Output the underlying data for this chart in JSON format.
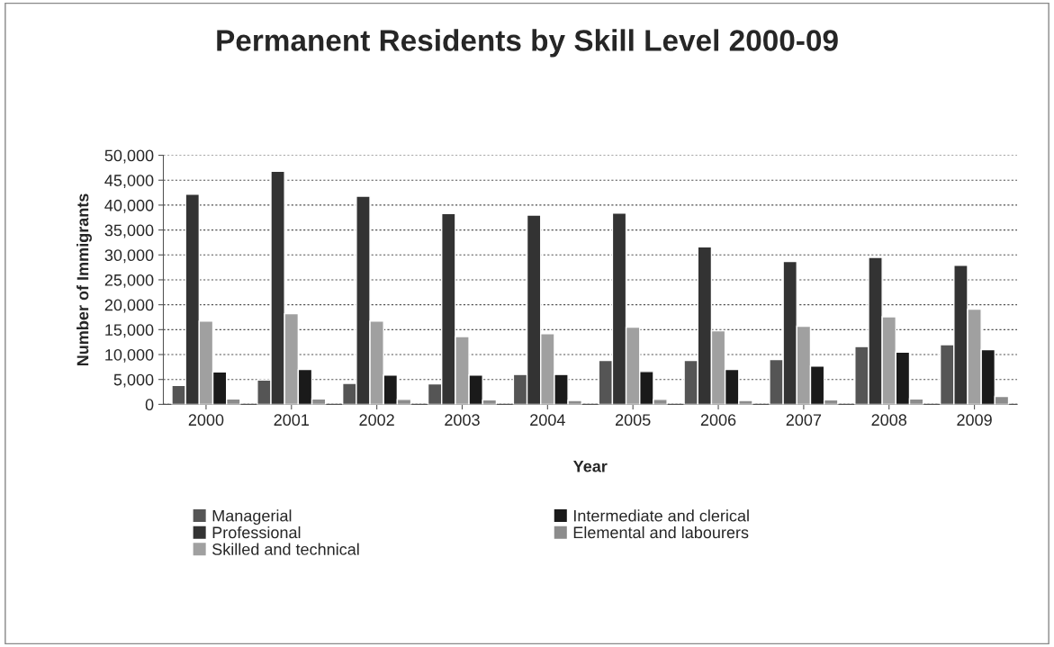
{
  "chart_data": {
    "type": "bar",
    "title": "Permanent Residents by Skill Level 2000-09",
    "xlabel": "Year",
    "ylabel": "Number of Immigrants",
    "categories": [
      "2000",
      "2001",
      "2002",
      "2003",
      "2004",
      "2005",
      "2006",
      "2007",
      "2008",
      "2009"
    ],
    "series": [
      {
        "name": "Managerial",
        "color": "#555555",
        "values": [
          3800,
          4900,
          4200,
          4100,
          6000,
          8800,
          8800,
          9000,
          11600,
          12000
        ]
      },
      {
        "name": "Professional",
        "color": "#333333",
        "values": [
          42200,
          46800,
          41800,
          38300,
          38000,
          38400,
          31600,
          28700,
          29500,
          27900
        ]
      },
      {
        "name": "Skilled and technical",
        "color": "#a0a0a0",
        "values": [
          16700,
          18200,
          16700,
          13600,
          14200,
          15500,
          14800,
          15700,
          17600,
          19100
        ]
      },
      {
        "name": "Intermediate and clerical",
        "color": "#1a1a1a",
        "values": [
          6500,
          7000,
          5900,
          5900,
          6000,
          6600,
          7000,
          7700,
          10500,
          11000
        ]
      },
      {
        "name": "Elemental and labourers",
        "color": "#8c8c8c",
        "values": [
          1100,
          1100,
          1000,
          900,
          800,
          1000,
          800,
          900,
          1100,
          1600
        ]
      }
    ],
    "ylim": [
      0,
      50000
    ],
    "yticks": [
      {
        "value": 0,
        "label": "0"
      },
      {
        "value": 5000,
        "label": "5,000"
      },
      {
        "value": 10000,
        "label": "10,000"
      },
      {
        "value": 15000,
        "label": "15,000"
      },
      {
        "value": 20000,
        "label": "20,000"
      },
      {
        "value": 25000,
        "label": "25,000"
      },
      {
        "value": 30000,
        "label": "30,000"
      },
      {
        "value": 35000,
        "label": "35,000"
      },
      {
        "value": 40000,
        "label": "40,000"
      },
      {
        "value": 45000,
        "label": "45,000"
      },
      {
        "value": 50000,
        "label": "50,000"
      }
    ],
    "grid": "y",
    "legend": "bottom"
  }
}
